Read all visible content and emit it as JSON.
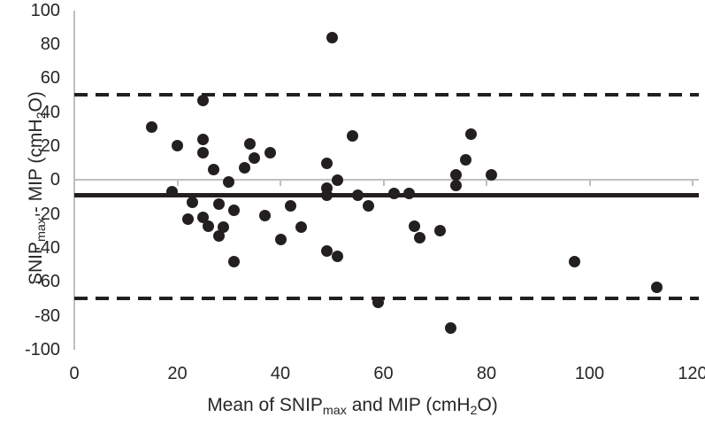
{
  "chart_data": {
    "type": "scatter",
    "description": "Bland-Altman agreement plot of SNIPmax versus MIP",
    "xlabel_parts": [
      [
        "Mean of SNIP",
        false
      ],
      [
        "max",
        true
      ],
      [
        " and MIP (cmH",
        false
      ],
      [
        "2",
        true
      ],
      [
        "O)",
        false
      ]
    ],
    "ylabel_parts": [
      [
        "SNIP",
        false
      ],
      [
        "max",
        true
      ],
      [
        " - MIP (cmH",
        false
      ],
      [
        "2",
        true
      ],
      [
        "O)",
        false
      ]
    ],
    "xlim": [
      0,
      120
    ],
    "ylim": [
      -100,
      100
    ],
    "x_ticks": [
      0,
      20,
      40,
      60,
      80,
      100,
      120
    ],
    "y_ticks": [
      100,
      80,
      60,
      40,
      20,
      0,
      -20,
      -40,
      -60,
      -80,
      -100
    ],
    "grid": "zero-line-only",
    "legend": "none",
    "ref_lines": [
      {
        "name": "upper-limit-of-agreement",
        "y": 50,
        "style": "dashed"
      },
      {
        "name": "mean-bias",
        "y": -9,
        "style": "solid"
      },
      {
        "name": "lower-limit-of-agreement",
        "y": -70,
        "style": "dashed"
      }
    ],
    "points": [
      [
        50,
        84
      ],
      [
        25,
        47
      ],
      [
        15,
        31
      ],
      [
        77,
        27
      ],
      [
        54,
        26
      ],
      [
        25,
        24
      ],
      [
        34,
        21
      ],
      [
        20,
        20
      ],
      [
        38,
        16
      ],
      [
        25,
        16
      ],
      [
        35,
        13
      ],
      [
        76,
        12
      ],
      [
        49,
        10
      ],
      [
        33,
        7
      ],
      [
        27,
        6
      ],
      [
        74,
        3
      ],
      [
        81,
        3
      ],
      [
        51,
        0
      ],
      [
        30,
        -1
      ],
      [
        74,
        -3
      ],
      [
        49,
        -5
      ],
      [
        19,
        -7
      ],
      [
        62,
        -8
      ],
      [
        65,
        -8
      ],
      [
        49,
        -9
      ],
      [
        55,
        -9
      ],
      [
        23,
        -13
      ],
      [
        28,
        -14
      ],
      [
        42,
        -15
      ],
      [
        57,
        -15
      ],
      [
        31,
        -18
      ],
      [
        37,
        -21
      ],
      [
        25,
        -22
      ],
      [
        22,
        -23
      ],
      [
        26,
        -27
      ],
      [
        66,
        -27
      ],
      [
        44,
        -28
      ],
      [
        29,
        -28
      ],
      [
        71,
        -30
      ],
      [
        28,
        -33
      ],
      [
        67,
        -34
      ],
      [
        40,
        -35
      ],
      [
        49,
        -42
      ],
      [
        51,
        -45
      ],
      [
        31,
        -48
      ],
      [
        97,
        -48
      ],
      [
        113,
        -63
      ],
      [
        59,
        -72
      ],
      [
        73,
        -87
      ]
    ],
    "colors": {
      "point": "#231f20",
      "ref_line": "#231f20",
      "axis": "#bfbfbf",
      "text": "#262626",
      "background": "#ffffff"
    }
  }
}
